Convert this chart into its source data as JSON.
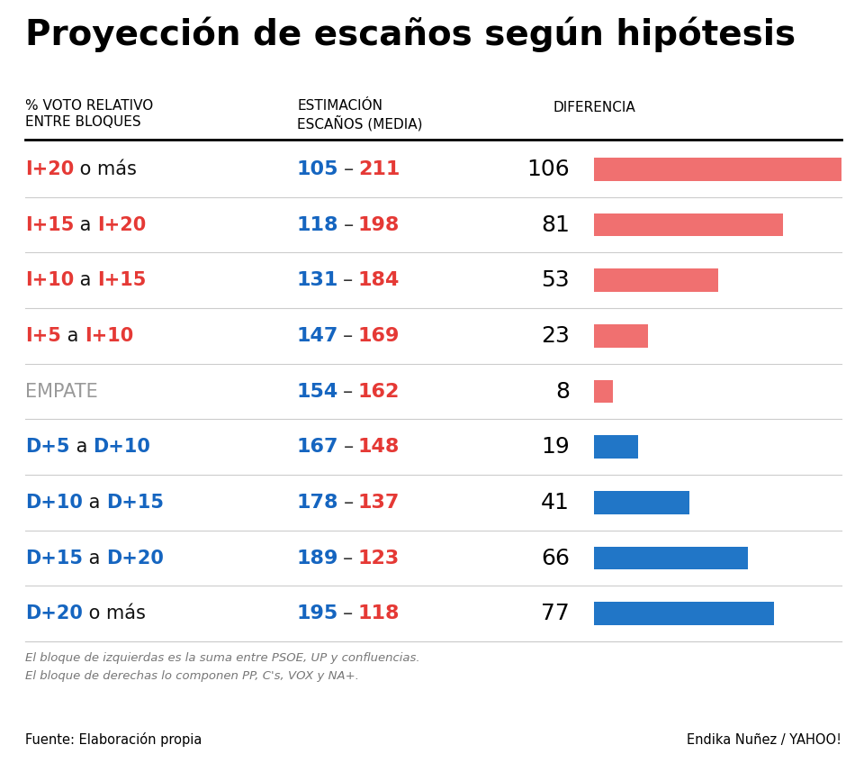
{
  "title": "Proyección de escaños según hipótesis",
  "col1_header_line1": "% VOTO RELATIVO",
  "col1_header_line2": "ENTRE BLOQUES",
  "col2_header_line1": "ESTIMACIÓN",
  "col2_header_line2": "ESCAÑOS (MEDIA)",
  "col3_header": "DIFERENCIA",
  "rows": [
    {
      "label_parts": [
        [
          "I+20",
          "red"
        ],
        [
          " o más",
          "black"
        ]
      ],
      "val1": 105,
      "val2": 211,
      "diff": 106,
      "bar_color": "#f07070",
      "type": "izq"
    },
    {
      "label_parts": [
        [
          "I+15",
          "red"
        ],
        [
          " a ",
          "black"
        ],
        [
          "I+20",
          "red"
        ]
      ],
      "val1": 118,
      "val2": 198,
      "diff": 81,
      "bar_color": "#f07070",
      "type": "izq"
    },
    {
      "label_parts": [
        [
          "I+10",
          "red"
        ],
        [
          " a ",
          "black"
        ],
        [
          "I+15",
          "red"
        ]
      ],
      "val1": 131,
      "val2": 184,
      "diff": 53,
      "bar_color": "#f07070",
      "type": "izq"
    },
    {
      "label_parts": [
        [
          "I+5",
          "red"
        ],
        [
          " a ",
          "black"
        ],
        [
          "I+10",
          "red"
        ]
      ],
      "val1": 147,
      "val2": 169,
      "diff": 23,
      "bar_color": "#f07070",
      "type": "izq"
    },
    {
      "label_parts": [
        [
          "EMPATE",
          "gray"
        ]
      ],
      "val1": 154,
      "val2": 162,
      "diff": 8,
      "bar_color": "#f07070",
      "type": "empate"
    },
    {
      "label_parts": [
        [
          "D+5",
          "blue"
        ],
        [
          " a ",
          "black"
        ],
        [
          "D+10",
          "blue"
        ]
      ],
      "val1": 167,
      "val2": 148,
      "diff": 19,
      "bar_color": "#2176c7",
      "type": "der"
    },
    {
      "label_parts": [
        [
          "D+10",
          "blue"
        ],
        [
          " a ",
          "black"
        ],
        [
          "D+15",
          "blue"
        ]
      ],
      "val1": 178,
      "val2": 137,
      "diff": 41,
      "bar_color": "#2176c7",
      "type": "der"
    },
    {
      "label_parts": [
        [
          "D+15",
          "blue"
        ],
        [
          " a ",
          "black"
        ],
        [
          "D+20",
          "blue"
        ]
      ],
      "val1": 189,
      "val2": 123,
      "diff": 66,
      "bar_color": "#2176c7",
      "type": "der"
    },
    {
      "label_parts": [
        [
          "D+20",
          "blue"
        ],
        [
          " o más",
          "black"
        ]
      ],
      "val1": 195,
      "val2": 118,
      "diff": 77,
      "bar_color": "#2176c7",
      "type": "der"
    }
  ],
  "footnote1": "El bloque de izquierdas es la suma entre PSOE, UP y confluencias.",
  "footnote2": "El bloque de derechas lo componen PP, C's, VOX y NA+.",
  "source_left": "Fuente: Elaboración propia",
  "source_right": "Endika Nuñez / YAHOO!",
  "max_diff": 106,
  "blue_color": "#1565c0",
  "red_label_color": "#e53935",
  "val1_color": "#1565c0",
  "val2_color": "#e53935",
  "gray_color": "#999999",
  "background_color": "#ffffff"
}
